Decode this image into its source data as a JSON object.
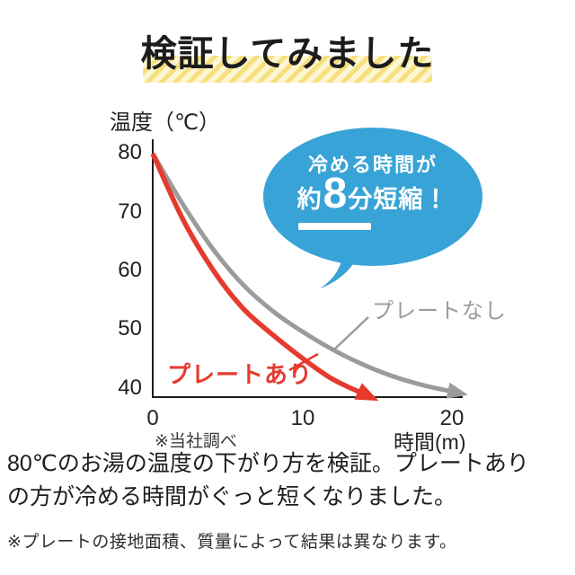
{
  "title": "検証してみました",
  "callout": {
    "line1": "冷める時間が",
    "line2_prefix": "約",
    "line2_big": "8",
    "line2_suffix": "分短縮！",
    "bg_color": "#38a3d6",
    "text_color": "#ffffff"
  },
  "chart": {
    "y_axis_title": "温度（℃）",
    "x_axis_title": "時間(m)",
    "source_note": "※当社調べ",
    "y_ticks": [
      "80",
      "70",
      "60",
      "50",
      "40"
    ],
    "x_ticks": [
      "0",
      "10",
      "20"
    ],
    "series_labels": {
      "with_plate": "プレートあり",
      "without_plate": "プレートなし"
    },
    "colors": {
      "with_plate": "#e63a2e",
      "without_plate": "#9b9b9b",
      "axis": "#1c1c1c",
      "highlight_stripe": "#f6df7e"
    }
  },
  "chart_data": {
    "type": "line",
    "title": "検証してみました",
    "xlabel": "時間(m)",
    "ylabel": "温度（℃）",
    "xlim": [
      0,
      20
    ],
    "ylim": [
      40,
      80
    ],
    "x_tick_values": [
      0,
      10,
      20
    ],
    "y_tick_values": [
      40,
      50,
      60,
      70,
      80
    ],
    "grid": false,
    "legend_position": "inline-labels",
    "series": [
      {
        "name": "プレートなし",
        "color": "#9b9b9b",
        "x": [
          0,
          2,
          4,
          6,
          8,
          10,
          12,
          14,
          16,
          18,
          20
        ],
        "values": [
          80,
          71.5,
          64,
          58,
          53.5,
          50,
          47,
          44.5,
          42.5,
          41,
          39.9
        ]
      },
      {
        "name": "プレートあり",
        "color": "#e63a2e",
        "x": [
          0,
          2,
          4,
          6,
          8,
          10,
          12,
          14
        ],
        "values": [
          80,
          69,
          60.5,
          54,
          49.5,
          45.5,
          42,
          39.6
        ]
      }
    ],
    "annotation": "冷める時間が約8分短縮！"
  },
  "description": "80℃のお湯の温度の下がり方を検証。プレートあり\nの方が冷める時間がぐっと短くなりました。",
  "footnote": "※プレートの接地面積、質量によって結果は異なります。"
}
